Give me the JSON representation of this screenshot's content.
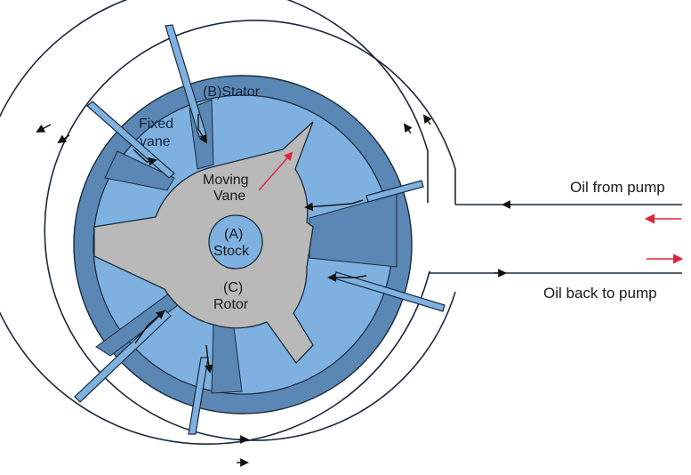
{
  "labels": {
    "stator": "(B)Stator",
    "fixed_vane_line1": "Fixed",
    "fixed_vane_line2": "vane",
    "moving_vane_line1": "Moving",
    "moving_vane_line2": "Vane",
    "stock_line1": "(A)",
    "stock_line2": "Stock",
    "rotor_line1": "(C)",
    "rotor_line2": "Rotor",
    "oil_from_pump": "Oil from pump",
    "oil_back_to_pump": "Oil back to pump"
  },
  "colors": {
    "stator_blue": "#5b87b4",
    "chamber_light_blue": "#7fb1e0",
    "rotor_gray": "#b9b9b9",
    "stock_blue": "#7fb1e0",
    "line_dark": "#1a2a3a",
    "arrow_red": "#e0243c"
  }
}
